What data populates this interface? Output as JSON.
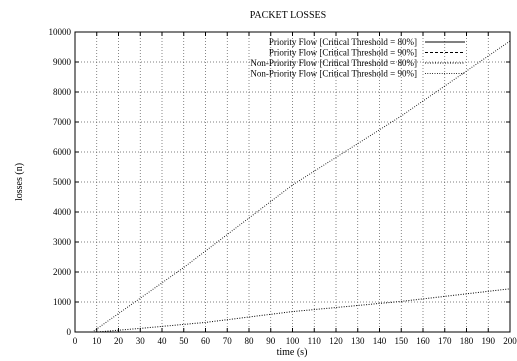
{
  "chart_data": {
    "type": "line",
    "title": "PACKET LOSSES",
    "xlabel": "time (s)",
    "ylabel": "losses (n)",
    "xlim": [
      0,
      200
    ],
    "ylim": [
      0,
      10000
    ],
    "xticks": [
      0,
      10,
      20,
      30,
      40,
      50,
      60,
      70,
      80,
      90,
      100,
      110,
      120,
      130,
      140,
      150,
      160,
      170,
      180,
      190,
      200
    ],
    "yticks": [
      0,
      1000,
      2000,
      3000,
      4000,
      5000,
      6000,
      7000,
      8000,
      9000,
      10000
    ],
    "grid": true,
    "legend_position": "top-right",
    "series": [
      {
        "name": "Priority Flow [Critical Threshold = 80%]",
        "style": "solid",
        "x": [
          0,
          10,
          200
        ],
        "y": [
          0,
          0,
          0
        ]
      },
      {
        "name": "Priority Flow [Critical Threshold = 90%]",
        "style": "dashed",
        "x": [
          0,
          10,
          200
        ],
        "y": [
          0,
          0,
          0
        ]
      },
      {
        "name": "Non-Priority Flow [Critical Threshold = 80%]",
        "style": "dotted-dense",
        "x": [
          0,
          10,
          30,
          60,
          100,
          150,
          200
        ],
        "y": [
          0,
          0,
          120,
          320,
          680,
          1020,
          1440
        ]
      },
      {
        "name": "Non-Priority Flow [Critical Threshold = 90%]",
        "style": "dotted",
        "x": [
          0,
          8,
          50,
          100,
          150,
          200
        ],
        "y": [
          0,
          0,
          2150,
          4900,
          7200,
          9700
        ]
      }
    ]
  }
}
